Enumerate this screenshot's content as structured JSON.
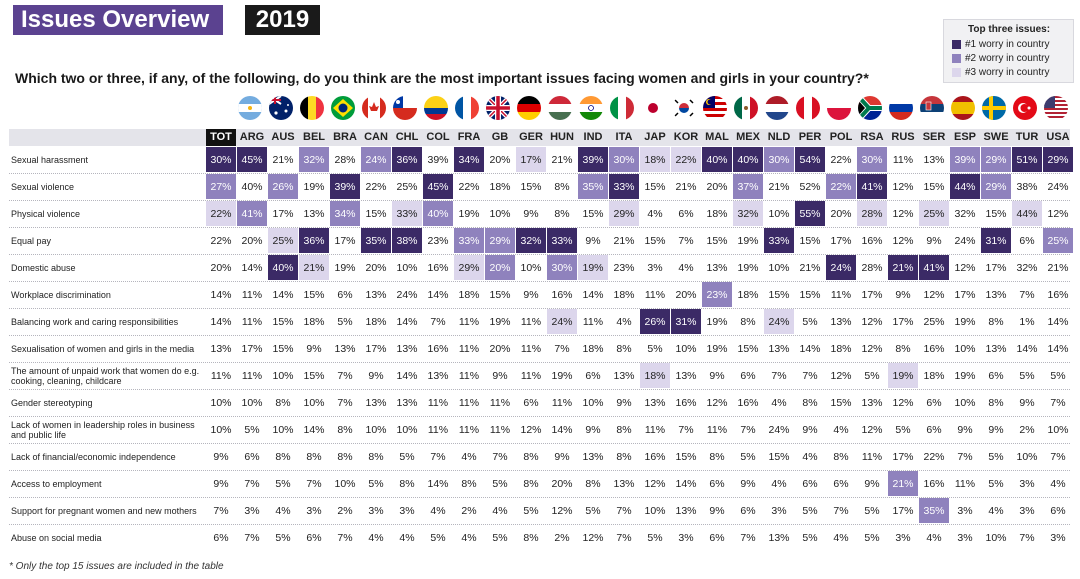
{
  "header": {
    "title": "Issues Overview",
    "year": "2019"
  },
  "question": "Which two or three, if any, of the following, do you think are the most important issues facing women and girls in your country?*",
  "legend": {
    "title": "Top three issues:",
    "items": [
      {
        "label": "#1 worry in country",
        "color": "#3b2a66"
      },
      {
        "label": "#2 worry in country",
        "color": "#8f82bd"
      },
      {
        "label": "#3 worry in country",
        "color": "#dcd6ec"
      }
    ]
  },
  "columns": [
    "TOT",
    "ARG",
    "AUS",
    "BEL",
    "BRA",
    "CAN",
    "CHL",
    "COL",
    "FRA",
    "GB",
    "GER",
    "HUN",
    "IND",
    "ITA",
    "JAP",
    "KOR",
    "MAL",
    "MEX",
    "NLD",
    "PER",
    "POL",
    "RSA",
    "RUS",
    "SER",
    "ESP",
    "SWE",
    "TUR",
    "USA"
  ],
  "chart_data": {
    "type": "table",
    "columns": [
      "TOT",
      "ARG",
      "AUS",
      "BEL",
      "BRA",
      "CAN",
      "CHL",
      "COL",
      "FRA",
      "GB",
      "GER",
      "HUN",
      "IND",
      "ITA",
      "JAP",
      "KOR",
      "MAL",
      "MEX",
      "NLD",
      "PER",
      "POL",
      "RSA",
      "RUS",
      "SER",
      "ESP",
      "SWE",
      "TUR",
      "USA"
    ],
    "rows": [
      {
        "label": "Sexual harassment",
        "values": [
          "30%",
          "45%",
          "21%",
          "32%",
          "28%",
          "24%",
          "36%",
          "39%",
          "34%",
          "20%",
          "17%",
          "21%",
          "39%",
          "30%",
          "18%",
          "22%",
          "40%",
          "40%",
          "30%",
          "54%",
          "22%",
          "30%",
          "11%",
          "13%",
          "39%",
          "29%",
          "51%",
          "29%"
        ],
        "ranks": [
          1,
          1,
          0,
          2,
          0,
          2,
          1,
          0,
          1,
          0,
          3,
          0,
          1,
          2,
          3,
          3,
          1,
          1,
          2,
          1,
          0,
          2,
          0,
          0,
          2,
          2,
          1,
          1
        ]
      },
      {
        "label": "Sexual violence",
        "values": [
          "27%",
          "40%",
          "26%",
          "19%",
          "39%",
          "22%",
          "25%",
          "45%",
          "22%",
          "18%",
          "15%",
          "8%",
          "35%",
          "33%",
          "15%",
          "21%",
          "20%",
          "37%",
          "21%",
          "52%",
          "22%",
          "41%",
          "12%",
          "15%",
          "44%",
          "29%",
          "38%",
          "24%"
        ],
        "ranks": [
          2,
          0,
          2,
          0,
          1,
          0,
          0,
          1,
          0,
          0,
          0,
          0,
          2,
          1,
          0,
          0,
          0,
          2,
          0,
          0,
          2,
          1,
          0,
          0,
          1,
          2,
          0,
          0
        ]
      },
      {
        "label": "Physical violence",
        "values": [
          "22%",
          "41%",
          "17%",
          "13%",
          "34%",
          "15%",
          "33%",
          "40%",
          "19%",
          "10%",
          "9%",
          "8%",
          "15%",
          "29%",
          "4%",
          "6%",
          "18%",
          "32%",
          "10%",
          "55%",
          "20%",
          "28%",
          "12%",
          "25%",
          "32%",
          "15%",
          "44%",
          "12%"
        ],
        "ranks": [
          3,
          2,
          0,
          0,
          2,
          0,
          3,
          2,
          0,
          0,
          0,
          0,
          0,
          3,
          0,
          0,
          0,
          3,
          0,
          1,
          0,
          3,
          0,
          3,
          0,
          0,
          3,
          0
        ]
      },
      {
        "label": "Equal pay",
        "values": [
          "22%",
          "20%",
          "25%",
          "36%",
          "17%",
          "35%",
          "38%",
          "23%",
          "33%",
          "29%",
          "32%",
          "33%",
          "9%",
          "21%",
          "15%",
          "7%",
          "15%",
          "19%",
          "33%",
          "15%",
          "17%",
          "16%",
          "12%",
          "9%",
          "24%",
          "31%",
          "6%",
          "25%"
        ],
        "ranks": [
          0,
          0,
          3,
          1,
          0,
          1,
          1,
          0,
          2,
          2,
          1,
          1,
          0,
          0,
          0,
          0,
          0,
          0,
          1,
          0,
          0,
          0,
          0,
          0,
          0,
          1,
          0,
          2
        ]
      },
      {
        "label": "Domestic abuse",
        "values": [
          "20%",
          "14%",
          "40%",
          "21%",
          "19%",
          "20%",
          "10%",
          "16%",
          "29%",
          "20%",
          "10%",
          "30%",
          "19%",
          "23%",
          "3%",
          "4%",
          "13%",
          "19%",
          "10%",
          "21%",
          "24%",
          "28%",
          "21%",
          "41%",
          "12%",
          "17%",
          "32%",
          "21%"
        ],
        "ranks": [
          0,
          0,
          1,
          3,
          0,
          0,
          0,
          0,
          3,
          2,
          0,
          2,
          3,
          0,
          0,
          0,
          0,
          0,
          0,
          0,
          1,
          0,
          1,
          1,
          0,
          0,
          0,
          0
        ]
      },
      {
        "label": "Workplace discrimination",
        "values": [
          "14%",
          "11%",
          "14%",
          "15%",
          "6%",
          "13%",
          "24%",
          "14%",
          "18%",
          "15%",
          "9%",
          "16%",
          "14%",
          "18%",
          "11%",
          "20%",
          "23%",
          "18%",
          "15%",
          "15%",
          "11%",
          "17%",
          "9%",
          "12%",
          "17%",
          "13%",
          "7%",
          "16%"
        ],
        "ranks": [
          0,
          0,
          0,
          0,
          0,
          0,
          0,
          0,
          0,
          0,
          0,
          0,
          0,
          0,
          0,
          0,
          2,
          0,
          0,
          0,
          0,
          0,
          0,
          0,
          0,
          0,
          0,
          0
        ]
      },
      {
        "label": "Balancing work and caring responsibilities",
        "values": [
          "14%",
          "11%",
          "15%",
          "18%",
          "5%",
          "18%",
          "14%",
          "7%",
          "11%",
          "19%",
          "11%",
          "24%",
          "11%",
          "4%",
          "26%",
          "31%",
          "19%",
          "8%",
          "24%",
          "5%",
          "13%",
          "12%",
          "17%",
          "25%",
          "19%",
          "8%",
          "1%",
          "14%"
        ],
        "ranks": [
          0,
          0,
          0,
          0,
          0,
          0,
          0,
          0,
          0,
          0,
          0,
          3,
          0,
          0,
          1,
          1,
          0,
          0,
          3,
          0,
          0,
          0,
          0,
          0,
          0,
          0,
          0,
          0
        ]
      },
      {
        "label": "Sexualisation of women and girls in the media",
        "values": [
          "13%",
          "17%",
          "15%",
          "9%",
          "13%",
          "17%",
          "13%",
          "16%",
          "11%",
          "20%",
          "11%",
          "7%",
          "18%",
          "8%",
          "5%",
          "10%",
          "19%",
          "15%",
          "13%",
          "14%",
          "18%",
          "12%",
          "8%",
          "16%",
          "10%",
          "13%",
          "14%",
          "14%"
        ],
        "ranks": [
          0,
          0,
          0,
          0,
          0,
          0,
          0,
          0,
          0,
          0,
          0,
          0,
          0,
          0,
          0,
          0,
          0,
          0,
          0,
          0,
          0,
          0,
          0,
          0,
          0,
          0,
          0,
          0
        ]
      },
      {
        "label": "The amount of unpaid work that women do e.g. cooking, cleaning, childcare",
        "values": [
          "11%",
          "11%",
          "10%",
          "15%",
          "7%",
          "9%",
          "14%",
          "13%",
          "11%",
          "9%",
          "11%",
          "19%",
          "6%",
          "13%",
          "18%",
          "13%",
          "9%",
          "6%",
          "7%",
          "7%",
          "12%",
          "5%",
          "19%",
          "18%",
          "19%",
          "6%",
          "5%",
          "5%"
        ],
        "ranks": [
          0,
          0,
          0,
          0,
          0,
          0,
          0,
          0,
          0,
          0,
          0,
          0,
          0,
          0,
          3,
          0,
          0,
          0,
          0,
          0,
          0,
          0,
          3,
          0,
          0,
          0,
          0,
          0
        ]
      },
      {
        "label": "Gender stereotyping",
        "values": [
          "10%",
          "10%",
          "8%",
          "10%",
          "7%",
          "13%",
          "13%",
          "11%",
          "11%",
          "11%",
          "6%",
          "11%",
          "10%",
          "9%",
          "13%",
          "16%",
          "12%",
          "16%",
          "4%",
          "8%",
          "15%",
          "13%",
          "12%",
          "6%",
          "10%",
          "8%",
          "9%",
          "7%"
        ],
        "ranks": [
          0,
          0,
          0,
          0,
          0,
          0,
          0,
          0,
          0,
          0,
          0,
          0,
          0,
          0,
          0,
          0,
          0,
          0,
          0,
          0,
          0,
          0,
          0,
          0,
          0,
          0,
          0,
          0
        ]
      },
      {
        "label": "Lack of women in leadership roles in business and public life",
        "values": [
          "10%",
          "5%",
          "10%",
          "14%",
          "8%",
          "10%",
          "10%",
          "11%",
          "11%",
          "11%",
          "12%",
          "14%",
          "9%",
          "8%",
          "11%",
          "7%",
          "11%",
          "7%",
          "24%",
          "9%",
          "4%",
          "12%",
          "5%",
          "6%",
          "9%",
          "9%",
          "2%",
          "10%"
        ],
        "ranks": [
          0,
          0,
          0,
          0,
          0,
          0,
          0,
          0,
          0,
          0,
          0,
          0,
          0,
          0,
          0,
          0,
          0,
          0,
          0,
          0,
          0,
          0,
          0,
          0,
          0,
          0,
          0,
          0
        ]
      },
      {
        "label": "Lack of financial/economic independence",
        "values": [
          "9%",
          "6%",
          "8%",
          "8%",
          "8%",
          "8%",
          "5%",
          "7%",
          "4%",
          "7%",
          "8%",
          "9%",
          "13%",
          "8%",
          "16%",
          "15%",
          "8%",
          "5%",
          "15%",
          "4%",
          "8%",
          "11%",
          "17%",
          "22%",
          "7%",
          "5%",
          "10%",
          "7%"
        ],
        "ranks": [
          0,
          0,
          0,
          0,
          0,
          0,
          0,
          0,
          0,
          0,
          0,
          0,
          0,
          0,
          0,
          0,
          0,
          0,
          0,
          0,
          0,
          0,
          0,
          0,
          0,
          0,
          0,
          0
        ]
      },
      {
        "label": "Access to employment",
        "values": [
          "9%",
          "7%",
          "5%",
          "7%",
          "10%",
          "5%",
          "8%",
          "14%",
          "8%",
          "5%",
          "8%",
          "20%",
          "8%",
          "13%",
          "12%",
          "14%",
          "6%",
          "9%",
          "4%",
          "6%",
          "6%",
          "9%",
          "21%",
          "16%",
          "11%",
          "5%",
          "3%",
          "4%"
        ],
        "ranks": [
          0,
          0,
          0,
          0,
          0,
          0,
          0,
          0,
          0,
          0,
          0,
          0,
          0,
          0,
          0,
          0,
          0,
          0,
          0,
          0,
          0,
          0,
          2,
          0,
          0,
          0,
          0,
          0
        ]
      },
      {
        "label": "Support for pregnant women and new mothers",
        "values": [
          "7%",
          "3%",
          "4%",
          "3%",
          "2%",
          "3%",
          "3%",
          "4%",
          "2%",
          "4%",
          "5%",
          "12%",
          "5%",
          "7%",
          "10%",
          "13%",
          "9%",
          "6%",
          "3%",
          "5%",
          "7%",
          "5%",
          "17%",
          "35%",
          "3%",
          "4%",
          "3%",
          "6%"
        ],
        "ranks": [
          0,
          0,
          0,
          0,
          0,
          0,
          0,
          0,
          0,
          0,
          0,
          0,
          0,
          0,
          0,
          0,
          0,
          0,
          0,
          0,
          0,
          0,
          0,
          2,
          0,
          0,
          0,
          0
        ]
      },
      {
        "label": "Abuse on social media",
        "values": [
          "6%",
          "7%",
          "5%",
          "6%",
          "7%",
          "4%",
          "4%",
          "5%",
          "4%",
          "5%",
          "8%",
          "2%",
          "12%",
          "7%",
          "5%",
          "3%",
          "6%",
          "7%",
          "13%",
          "5%",
          "4%",
          "5%",
          "3%",
          "4%",
          "3%",
          "10%",
          "7%",
          "3%"
        ],
        "ranks": [
          0,
          0,
          0,
          0,
          0,
          0,
          0,
          0,
          0,
          0,
          0,
          0,
          0,
          0,
          0,
          0,
          0,
          0,
          0,
          0,
          0,
          0,
          0,
          0,
          0,
          0,
          0,
          0
        ]
      }
    ]
  },
  "footnote": "* Only the top 15 issues are included in the table"
}
